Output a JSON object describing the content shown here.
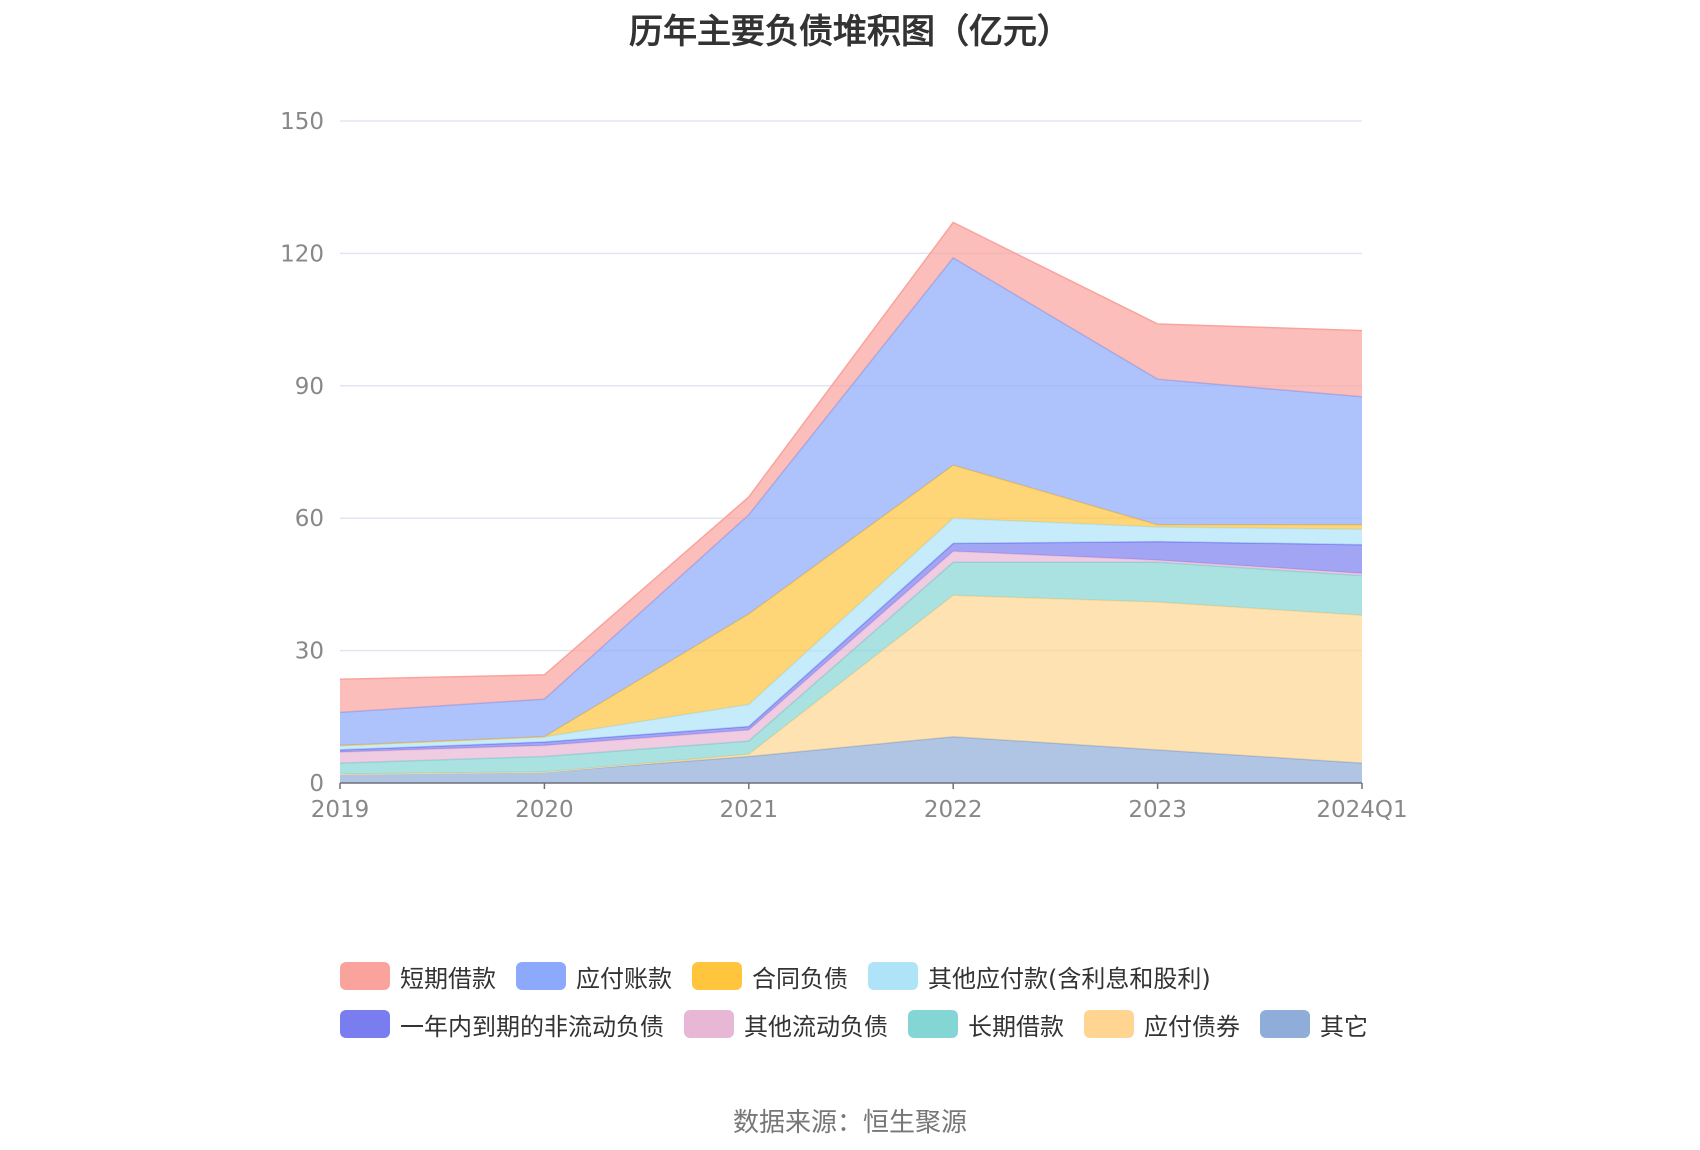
{
  "chart_data": {
    "type": "area",
    "stacked": true,
    "title": "历年主要负债堆积图（亿元）",
    "xlabel": "",
    "ylabel": "",
    "categories": [
      "2019",
      "2020",
      "2021",
      "2022",
      "2023",
      "2024Q1"
    ],
    "ylim": [
      0,
      150
    ],
    "yticks": [
      0,
      30,
      60,
      90,
      120,
      150
    ],
    "grid": true,
    "legend_position": "bottom",
    "series": [
      {
        "name": "其它",
        "color": "#8fadd9",
        "values": [
          2.0,
          2.5,
          6.0,
          10.5,
          7.5,
          4.5
        ]
      },
      {
        "name": "应付债券",
        "color": "#ffd591",
        "values": [
          0.0,
          0.0,
          0.5,
          32.0,
          33.5,
          33.5
        ]
      },
      {
        "name": "长期借款",
        "color": "#84d6d4",
        "values": [
          2.5,
          3.5,
          3.0,
          7.5,
          9.0,
          9.0
        ]
      },
      {
        "name": "其他流动负债",
        "color": "#e8b7d6",
        "values": [
          2.5,
          2.5,
          2.5,
          2.5,
          0.5,
          0.5
        ]
      },
      {
        "name": "一年内到期的非流动负债",
        "color": "#7a7df0",
        "values": [
          0.5,
          0.8,
          0.8,
          1.8,
          4.2,
          6.5
        ]
      },
      {
        "name": "其他应付款(含利息和股利)",
        "color": "#aee3f8",
        "values": [
          1.0,
          1.2,
          5.0,
          5.7,
          3.3,
          3.5
        ]
      },
      {
        "name": "合同负债",
        "color": "#ffc53d",
        "values": [
          0.0,
          0.0,
          20.5,
          12.0,
          0.5,
          1.0
        ]
      },
      {
        "name": "应付账款",
        "color": "#8ca9fb",
        "values": [
          7.5,
          8.5,
          22.5,
          47.0,
          33.0,
          29.0
        ]
      },
      {
        "name": "短期借款",
        "color": "#faa39c",
        "values": [
          7.5,
          5.5,
          4.0,
          8.0,
          12.5,
          15.0
        ]
      }
    ]
  },
  "legend": {
    "row1": [
      {
        "label": "短期借款",
        "color": "#faa39c"
      },
      {
        "label": "应付账款",
        "color": "#8ca9fb"
      },
      {
        "label": "合同负债",
        "color": "#ffc53d"
      },
      {
        "label": "其他应付款(含利息和股利)",
        "color": "#aee3f8"
      }
    ],
    "row2": [
      {
        "label": "一年内到期的非流动负债",
        "color": "#7a7df0"
      },
      {
        "label": "其他流动负债",
        "color": "#e8b7d6"
      },
      {
        "label": "长期借款",
        "color": "#84d6d4"
      },
      {
        "label": "应付债券",
        "color": "#ffd591"
      },
      {
        "label": "其它",
        "color": "#8fadd9"
      }
    ]
  },
  "source": "数据来源：恒生聚源"
}
